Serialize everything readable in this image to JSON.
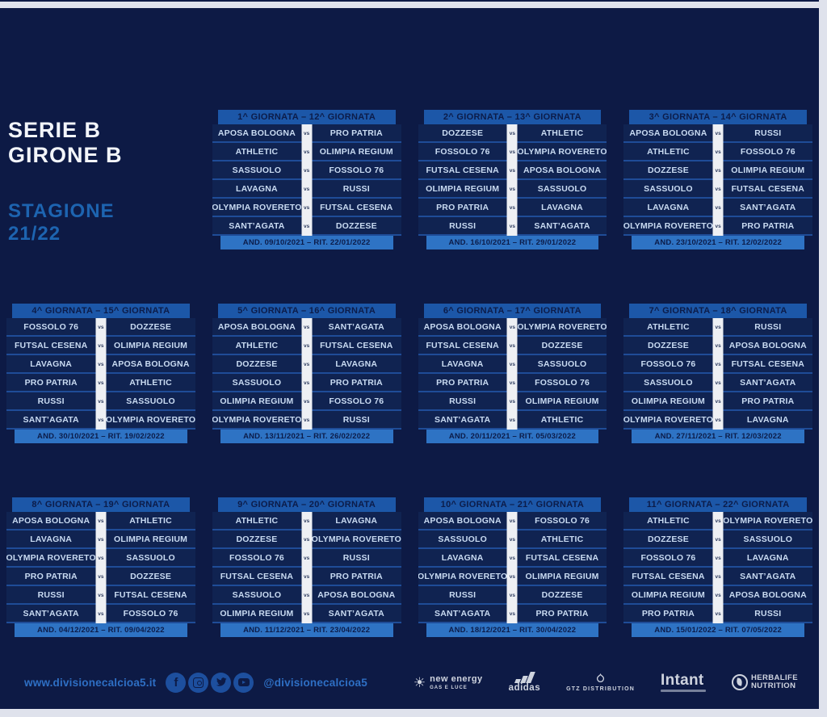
{
  "poster": {
    "league_title_line1": "SERIE B",
    "league_title_line2": "GIRONE B",
    "season_label_line1": "STAGIONE",
    "season_label_line2": "21/22",
    "vs_label": "vs"
  },
  "tables": [
    {
      "title": "1^ GIORNATA – 12^ GIORNATA",
      "dates": "AND. 09/10/2021 – RIT. 22/01/2022",
      "matches": [
        [
          "APOSA BOLOGNA",
          "PRO PATRIA"
        ],
        [
          "ATHLETIC",
          "OLIMPIA REGIUM"
        ],
        [
          "SASSUOLO",
          "FOSSOLO 76"
        ],
        [
          "LAVAGNA",
          "RUSSI"
        ],
        [
          "OLYMPIA ROVERETO",
          "FUTSAL CESENA"
        ],
        [
          "SANT’AGATA",
          "DOZZESE"
        ]
      ]
    },
    {
      "title": "2^ GIORNATA – 13^ GIORNATA",
      "dates": "AND. 16/10/2021 – RIT. 29/01/2022",
      "matches": [
        [
          "DOZZESE",
          "ATHLETIC"
        ],
        [
          "FOSSOLO 76",
          "OLYMPIA ROVERETO"
        ],
        [
          "FUTSAL CESENA",
          "APOSA BOLOGNA"
        ],
        [
          "OLIMPIA REGIUM",
          "SASSUOLO"
        ],
        [
          "PRO PATRIA",
          "LAVAGNA"
        ],
        [
          "RUSSI",
          "SANT’AGATA"
        ]
      ]
    },
    {
      "title": "3^ GIORNATA – 14^ GIORNATA",
      "dates": "AND. 23/10/2021 – RIT. 12/02/2022",
      "matches": [
        [
          "APOSA BOLOGNA",
          "RUSSI"
        ],
        [
          "ATHLETIC",
          "FOSSOLO 76"
        ],
        [
          "DOZZESE",
          "OLIMPIA REGIUM"
        ],
        [
          "SASSUOLO",
          "FUTSAL CESENA"
        ],
        [
          "LAVAGNA",
          "SANT’AGATA"
        ],
        [
          "OLYMPIA ROVERETO",
          "PRO PATRIA"
        ]
      ]
    },
    {
      "title": "4^ GIORNATA – 15^ GIORNATA",
      "dates": "AND. 30/10/2021 – RIT. 19/02/2022",
      "matches": [
        [
          "FOSSOLO 76",
          "DOZZESE"
        ],
        [
          "FUTSAL CESENA",
          "OLIMPIA REGIUM"
        ],
        [
          "LAVAGNA",
          "APOSA BOLOGNA"
        ],
        [
          "PRO PATRIA",
          "ATHLETIC"
        ],
        [
          "RUSSI",
          "SASSUOLO"
        ],
        [
          "SANT’AGATA",
          "OLYMPIA ROVERETO"
        ]
      ]
    },
    {
      "title": "5^ GIORNATA – 16^ GIORNATA",
      "dates": "AND. 13/11/2021 – RIT. 26/02/2022",
      "matches": [
        [
          "APOSA BOLOGNA",
          "SANT’AGATA"
        ],
        [
          "ATHLETIC",
          "FUTSAL CESENA"
        ],
        [
          "DOZZESE",
          "LAVAGNA"
        ],
        [
          "SASSUOLO",
          "PRO PATRIA"
        ],
        [
          "OLIMPIA REGIUM",
          "FOSSOLO 76"
        ],
        [
          "OLYMPIA ROVERETO",
          "RUSSI"
        ]
      ]
    },
    {
      "title": "6^ GIORNATA – 17^ GIORNATA",
      "dates": "AND. 20/11/2021 – RIT. 05/03/2022",
      "matches": [
        [
          "APOSA BOLOGNA",
          "OLYMPIA ROVERETO"
        ],
        [
          "FUTSAL CESENA",
          "DOZZESE"
        ],
        [
          "LAVAGNA",
          "SASSUOLO"
        ],
        [
          "PRO PATRIA",
          "FOSSOLO 76"
        ],
        [
          "RUSSI",
          "OLIMPIA REGIUM"
        ],
        [
          "SANT’AGATA",
          "ATHLETIC"
        ]
      ]
    },
    {
      "title": "7^ GIORNATA – 18^ GIORNATA",
      "dates": "AND. 27/11/2021 – RIT. 12/03/2022",
      "matches": [
        [
          "ATHLETIC",
          "RUSSI"
        ],
        [
          "DOZZESE",
          "APOSA BOLOGNA"
        ],
        [
          "FOSSOLO 76",
          "FUTSAL CESENA"
        ],
        [
          "SASSUOLO",
          "SANT’AGATA"
        ],
        [
          "OLIMPIA REGIUM",
          "PRO PATRIA"
        ],
        [
          "OLYMPIA ROVERETO",
          "LAVAGNA"
        ]
      ]
    },
    {
      "title": "8^ GIORNATA – 19^ GIORNATA",
      "dates": "AND. 04/12/2021 – RIT. 09/04/2022",
      "matches": [
        [
          "APOSA BOLOGNA",
          "ATHLETIC"
        ],
        [
          "LAVAGNA",
          "OLIMPIA REGIUM"
        ],
        [
          "OLYMPIA ROVERETO",
          "SASSUOLO"
        ],
        [
          "PRO PATRIA",
          "DOZZESE"
        ],
        [
          "RUSSI",
          "FUTSAL CESENA"
        ],
        [
          "SANT’AGATA",
          "FOSSOLO 76"
        ]
      ]
    },
    {
      "title": "9^ GIORNATA – 20^ GIORNATA",
      "dates": "AND. 11/12/2021 – RIT. 23/04/2022",
      "matches": [
        [
          "ATHLETIC",
          "LAVAGNA"
        ],
        [
          "DOZZESE",
          "OLYMPIA ROVERETO"
        ],
        [
          "FOSSOLO 76",
          "RUSSI"
        ],
        [
          "FUTSAL CESENA",
          "PRO PATRIA"
        ],
        [
          "SASSUOLO",
          "APOSA BOLOGNA"
        ],
        [
          "OLIMPIA REGIUM",
          "SANT’AGATA"
        ]
      ]
    },
    {
      "title": "10^ GIORNATA – 21^ GIORNATA",
      "dates": "AND. 18/12/2021 – RIT. 30/04/2022",
      "matches": [
        [
          "APOSA BOLOGNA",
          "FOSSOLO 76"
        ],
        [
          "SASSUOLO",
          "ATHLETIC"
        ],
        [
          "LAVAGNA",
          "FUTSAL CESENA"
        ],
        [
          "OLYMPIA ROVERETO",
          "OLIMPIA REGIUM"
        ],
        [
          "RUSSI",
          "DOZZESE"
        ],
        [
          "SANT’AGATA",
          "PRO PATRIA"
        ]
      ]
    },
    {
      "title": "11^ GIORNATA – 22^ GIORNATA",
      "dates": "AND. 15/01/2022 – RIT. 07/05/2022",
      "matches": [
        [
          "ATHLETIC",
          "OLYMPIA ROVERETO"
        ],
        [
          "DOZZESE",
          "SASSUOLO"
        ],
        [
          "FOSSOLO 76",
          "LAVAGNA"
        ],
        [
          "FUTSAL CESENA",
          "SANT’AGATA"
        ],
        [
          "OLIMPIA REGIUM",
          "APOSA BOLOGNA"
        ],
        [
          "PRO PATRIA",
          "RUSSI"
        ]
      ]
    }
  ],
  "footer": {
    "website": "www.divisionecalcioa5.it",
    "social_handle": "@divisionecalcioa5",
    "social_icons": [
      "facebook",
      "instagram",
      "twitter",
      "youtube"
    ],
    "sponsors": [
      {
        "label": "new energy",
        "sublabel": "GAS E LUCE"
      },
      {
        "label": "adidas"
      },
      {
        "label": "GTZ DISTRIBUTION"
      },
      {
        "label": "Intant"
      },
      {
        "label": "HERBALIFE",
        "sublabel": "NUTRITION"
      }
    ]
  },
  "colors": {
    "page_border": "#dfe2ec",
    "poster_background": "#0d1a45",
    "table_header": "#1c57a8",
    "table_row": "#102351",
    "row_divider": "#1f4c97",
    "date_bar": "#2e73c4",
    "team_text": "#c9dbf2",
    "dark_text": "#0c1c49",
    "vs_strip": "#eef0f4",
    "title_white": "#f2f5fa",
    "season_blue": "#1d64b0",
    "link_blue": "#2e6fc4",
    "social_circle": "#1d4f9e",
    "sponsor_white": "#dfe3ec"
  }
}
